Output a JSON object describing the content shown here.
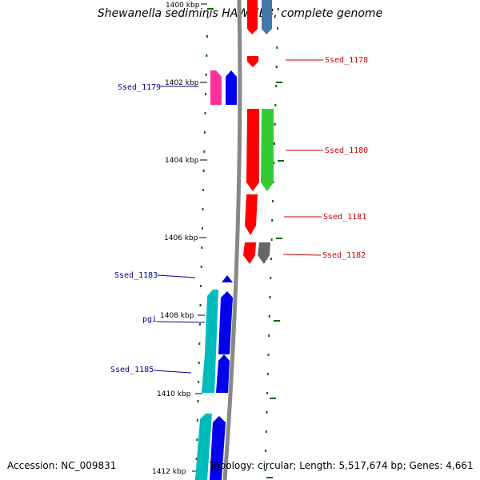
{
  "title": "Shewanella sediminis HAW-EB3, complete genome",
  "accession": "Accession: NC_009831",
  "summary": "Topology: circular; Length: 5,517,674 bp; Genes: 4,661",
  "ticks": [
    {
      "label": "1400 kbp"
    },
    {
      "label": "1402 kbp"
    },
    {
      "label": "1404 kbp"
    },
    {
      "label": "1406 kbp"
    },
    {
      "label": "1408 kbp"
    },
    {
      "label": "1410 kbp"
    },
    {
      "label": "1412 kbp"
    }
  ],
  "gene_labels": {
    "ssed_1178": "Ssed_1178",
    "ssed_1179": "Ssed_1179",
    "ssed_1180": "Ssed_1180",
    "ssed_1181": "Ssed_1181",
    "ssed_1182": "Ssed_1182",
    "ssed_1183": "Ssed_1183",
    "pgi": "pgi",
    "ssed_1185": "Ssed_1185"
  },
  "colors": {
    "forward_label": "#cc0000",
    "reverse_label": "#000099",
    "gene_red": "#ff0000",
    "gene_blue": "#0000ee",
    "gene_green": "#33cc33",
    "gene_magenta": "#ff3399",
    "gene_cyan": "#00bbbb",
    "gene_steel": "#4477aa",
    "gene_gray": "#666666",
    "dots": "#006600",
    "backbone": "#888888"
  }
}
